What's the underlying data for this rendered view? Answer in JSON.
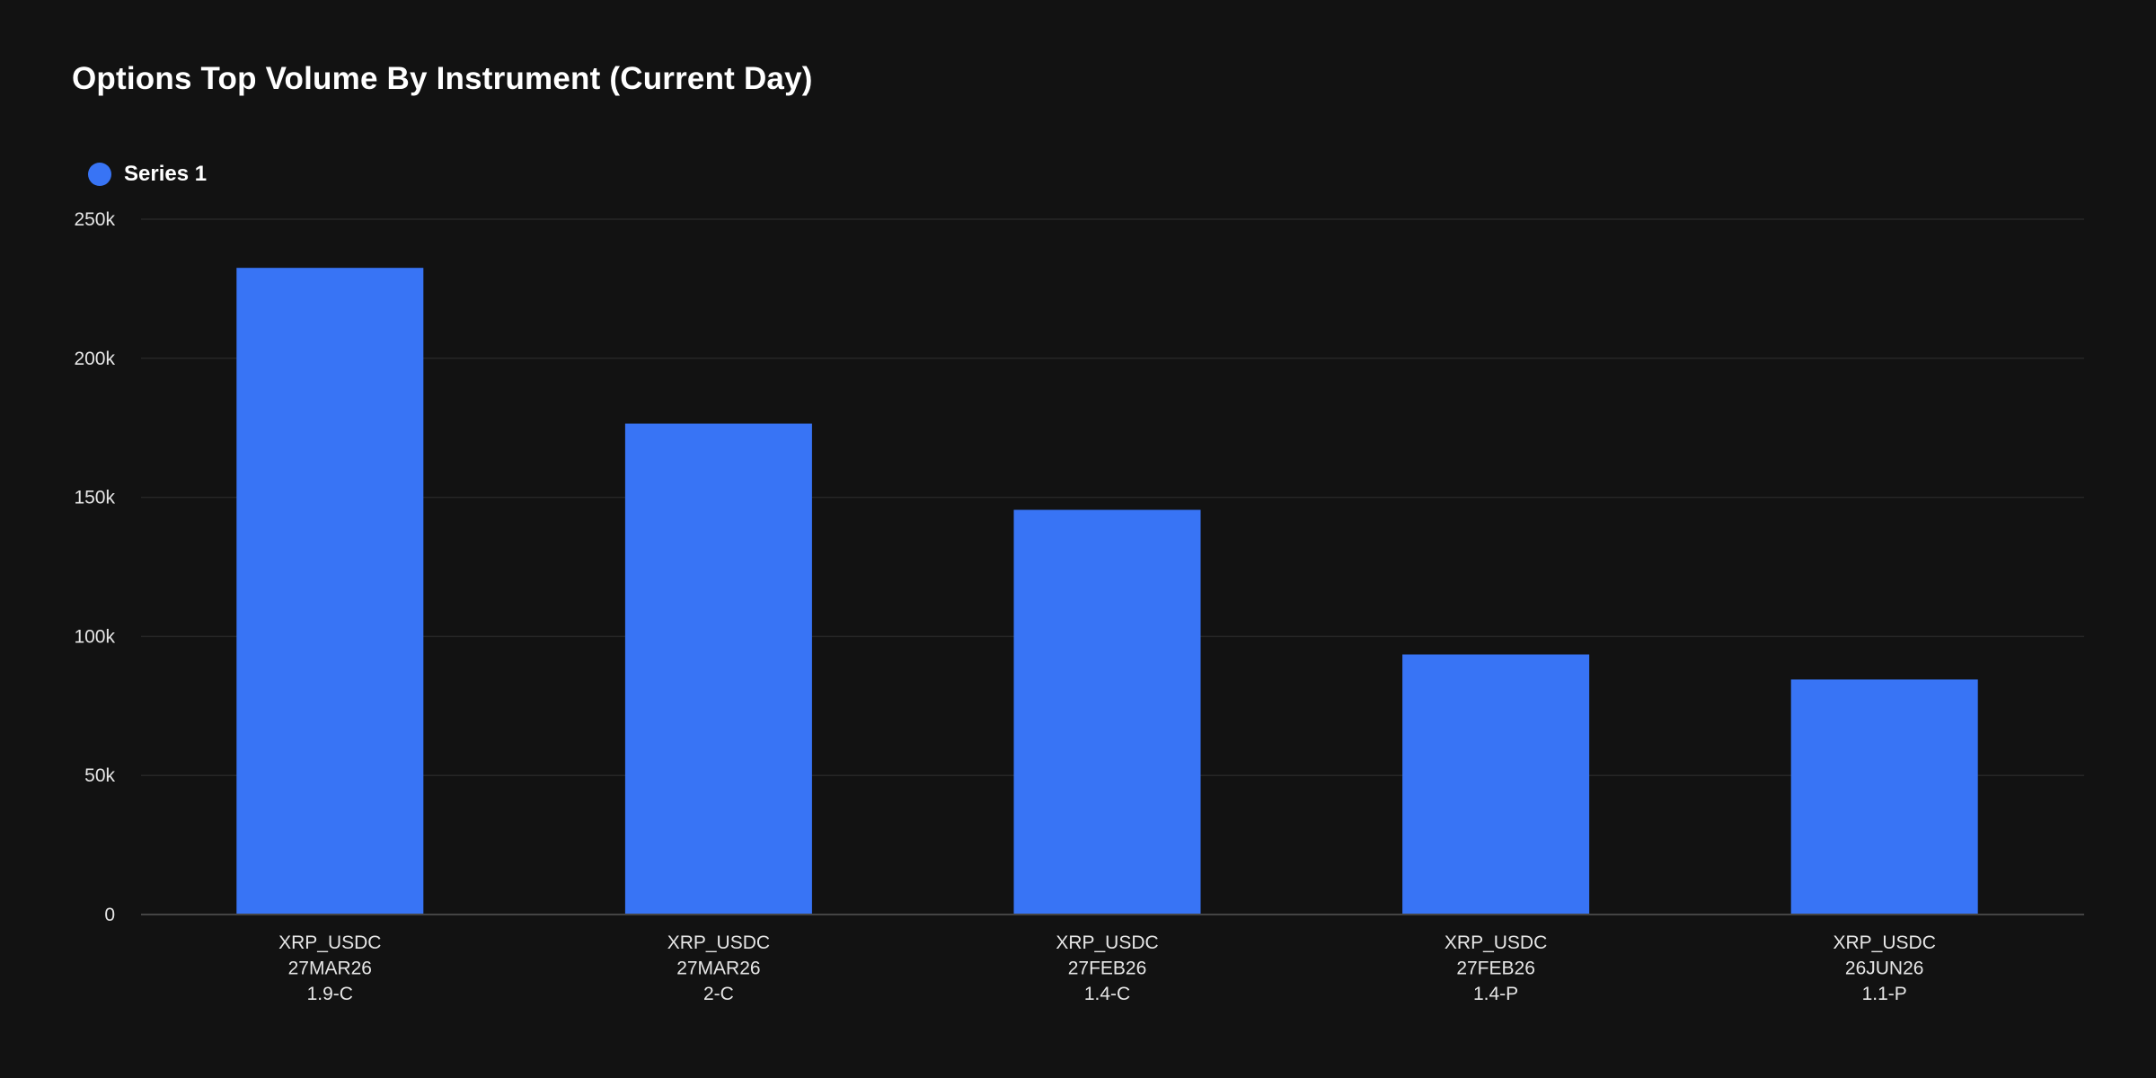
{
  "chart_data": {
    "type": "bar",
    "title": "Options Top Volume By Instrument (Current Day)",
    "xlabel": "",
    "ylabel": "",
    "categories": [
      [
        "XRP_USDC",
        "27MAR26",
        "1.9-C"
      ],
      [
        "XRP_USDC",
        "27MAR26",
        "2-C"
      ],
      [
        "XRP_USDC",
        "27FEB26",
        "1.4-C"
      ],
      [
        "XRP_USDC",
        "27FEB26",
        "1.4-P"
      ],
      [
        "XRP_USDC",
        "26JUN26",
        "1.1-P"
      ]
    ],
    "series": [
      {
        "name": "Series 1",
        "color": "#3874f5",
        "values": [
          232500,
          176500,
          145500,
          93500,
          84500
        ]
      }
    ],
    "ylim": [
      0,
      250000
    ],
    "yticks": [
      0,
      50000,
      100000,
      150000,
      200000,
      250000
    ],
    "ytick_labels": [
      "0",
      "50k",
      "100k",
      "150k",
      "200k",
      "250k"
    ],
    "grid": true,
    "legend_position": "top-left"
  },
  "colors": {
    "background": "#121212",
    "grid": "#262626",
    "axis": "#444444",
    "text": "#ffffff",
    "tick_text": "#e6e6e6"
  }
}
